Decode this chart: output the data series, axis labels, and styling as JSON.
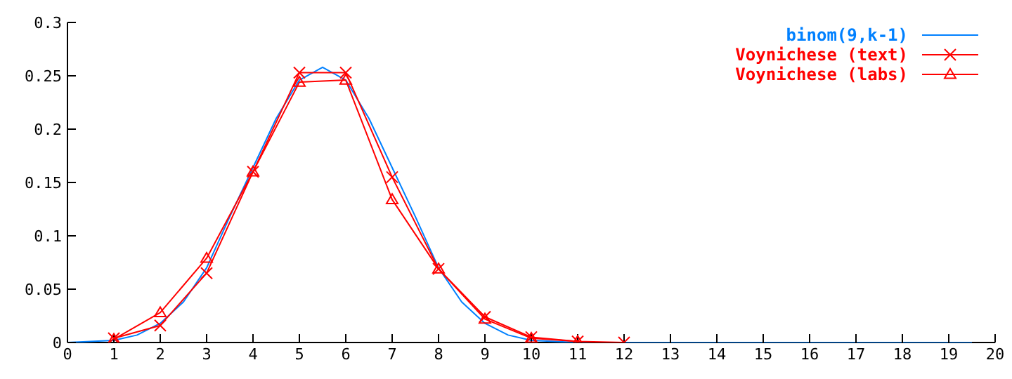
{
  "chart_data": {
    "type": "line",
    "xlim": [
      0,
      20
    ],
    "xticks": [
      0,
      1,
      2,
      3,
      4,
      5,
      6,
      7,
      8,
      9,
      10,
      11,
      12,
      13,
      14,
      15,
      16,
      17,
      18,
      19,
      20
    ],
    "ylim": [
      0,
      0.3
    ],
    "yticks": [
      0,
      0.05,
      0.1,
      0.15,
      0.2,
      0.25,
      0.3
    ],
    "legend": "top right",
    "series": [
      {
        "name": "binom(9,k-1)",
        "color": "#0080ff",
        "marker": "none",
        "x": [
          0,
          1,
          1.5,
          2,
          2.5,
          3,
          3.5,
          4,
          4.5,
          5,
          5.5,
          6,
          6.5,
          7,
          7.5,
          8,
          8.5,
          9,
          9.5,
          10,
          10.5,
          11,
          12,
          19.5
        ],
        "values": [
          0,
          0.002,
          0.007,
          0.018,
          0.038,
          0.07,
          0.118,
          0.164,
          0.21,
          0.246,
          0.258,
          0.246,
          0.21,
          0.164,
          0.118,
          0.07,
          0.038,
          0.018,
          0.007,
          0.002,
          0.001,
          0,
          0,
          0
        ]
      },
      {
        "name": "Voynichese (text)",
        "color": "#ff0000",
        "marker": "cross",
        "x": [
          1,
          2,
          3,
          4,
          5,
          6,
          7,
          8,
          9,
          10,
          11,
          12
        ],
        "values": [
          0.004,
          0.016,
          0.065,
          0.16,
          0.253,
          0.253,
          0.155,
          0.069,
          0.024,
          0.005,
          0.001,
          0
        ]
      },
      {
        "name": "Voynichese (labs)",
        "color": "#ff0000",
        "marker": "triangle",
        "x": [
          1,
          2,
          3,
          4,
          5,
          6,
          7,
          8,
          9,
          10,
          11
        ],
        "values": [
          0.003,
          0.028,
          0.079,
          0.16,
          0.244,
          0.246,
          0.134,
          0.069,
          0.022,
          0.004,
          0.001
        ]
      }
    ]
  }
}
